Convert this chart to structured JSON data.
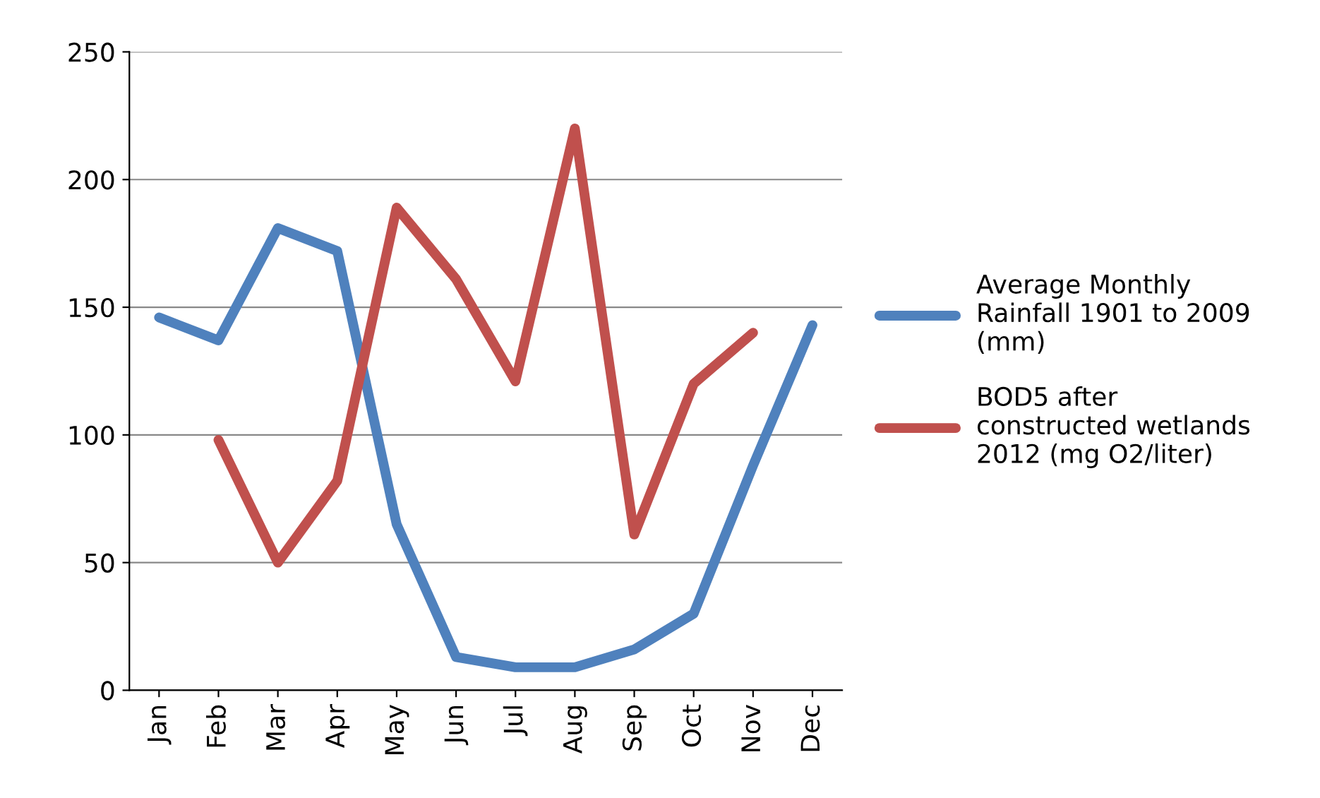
{
  "chart_data": {
    "type": "line",
    "categories": [
      "Jan",
      "Feb",
      "Mar",
      "Apr",
      "May",
      "Jun",
      "Jul",
      "Aug",
      "Sep",
      "Oct",
      "Nov",
      "Dec"
    ],
    "series": [
      {
        "name": "Average Monthly\nRainfall 1901 to 2009\n(mm)",
        "color": "#4f81bd",
        "values": [
          146,
          137,
          181,
          172,
          65,
          13,
          9,
          9,
          16,
          30,
          88,
          143
        ]
      },
      {
        "name": "BOD5 after\nconstructed wetlands\n2012 (mg O2/liter)",
        "color": "#c0504d",
        "values": [
          null,
          98,
          50,
          82,
          189,
          161,
          121,
          220,
          61,
          120,
          140,
          null
        ]
      }
    ],
    "ylim": [
      0,
      250
    ],
    "yticks": [
      0,
      50,
      100,
      150,
      200,
      250
    ],
    "grid": "y",
    "legend": "right",
    "marker": "none",
    "line_style": "solid"
  }
}
